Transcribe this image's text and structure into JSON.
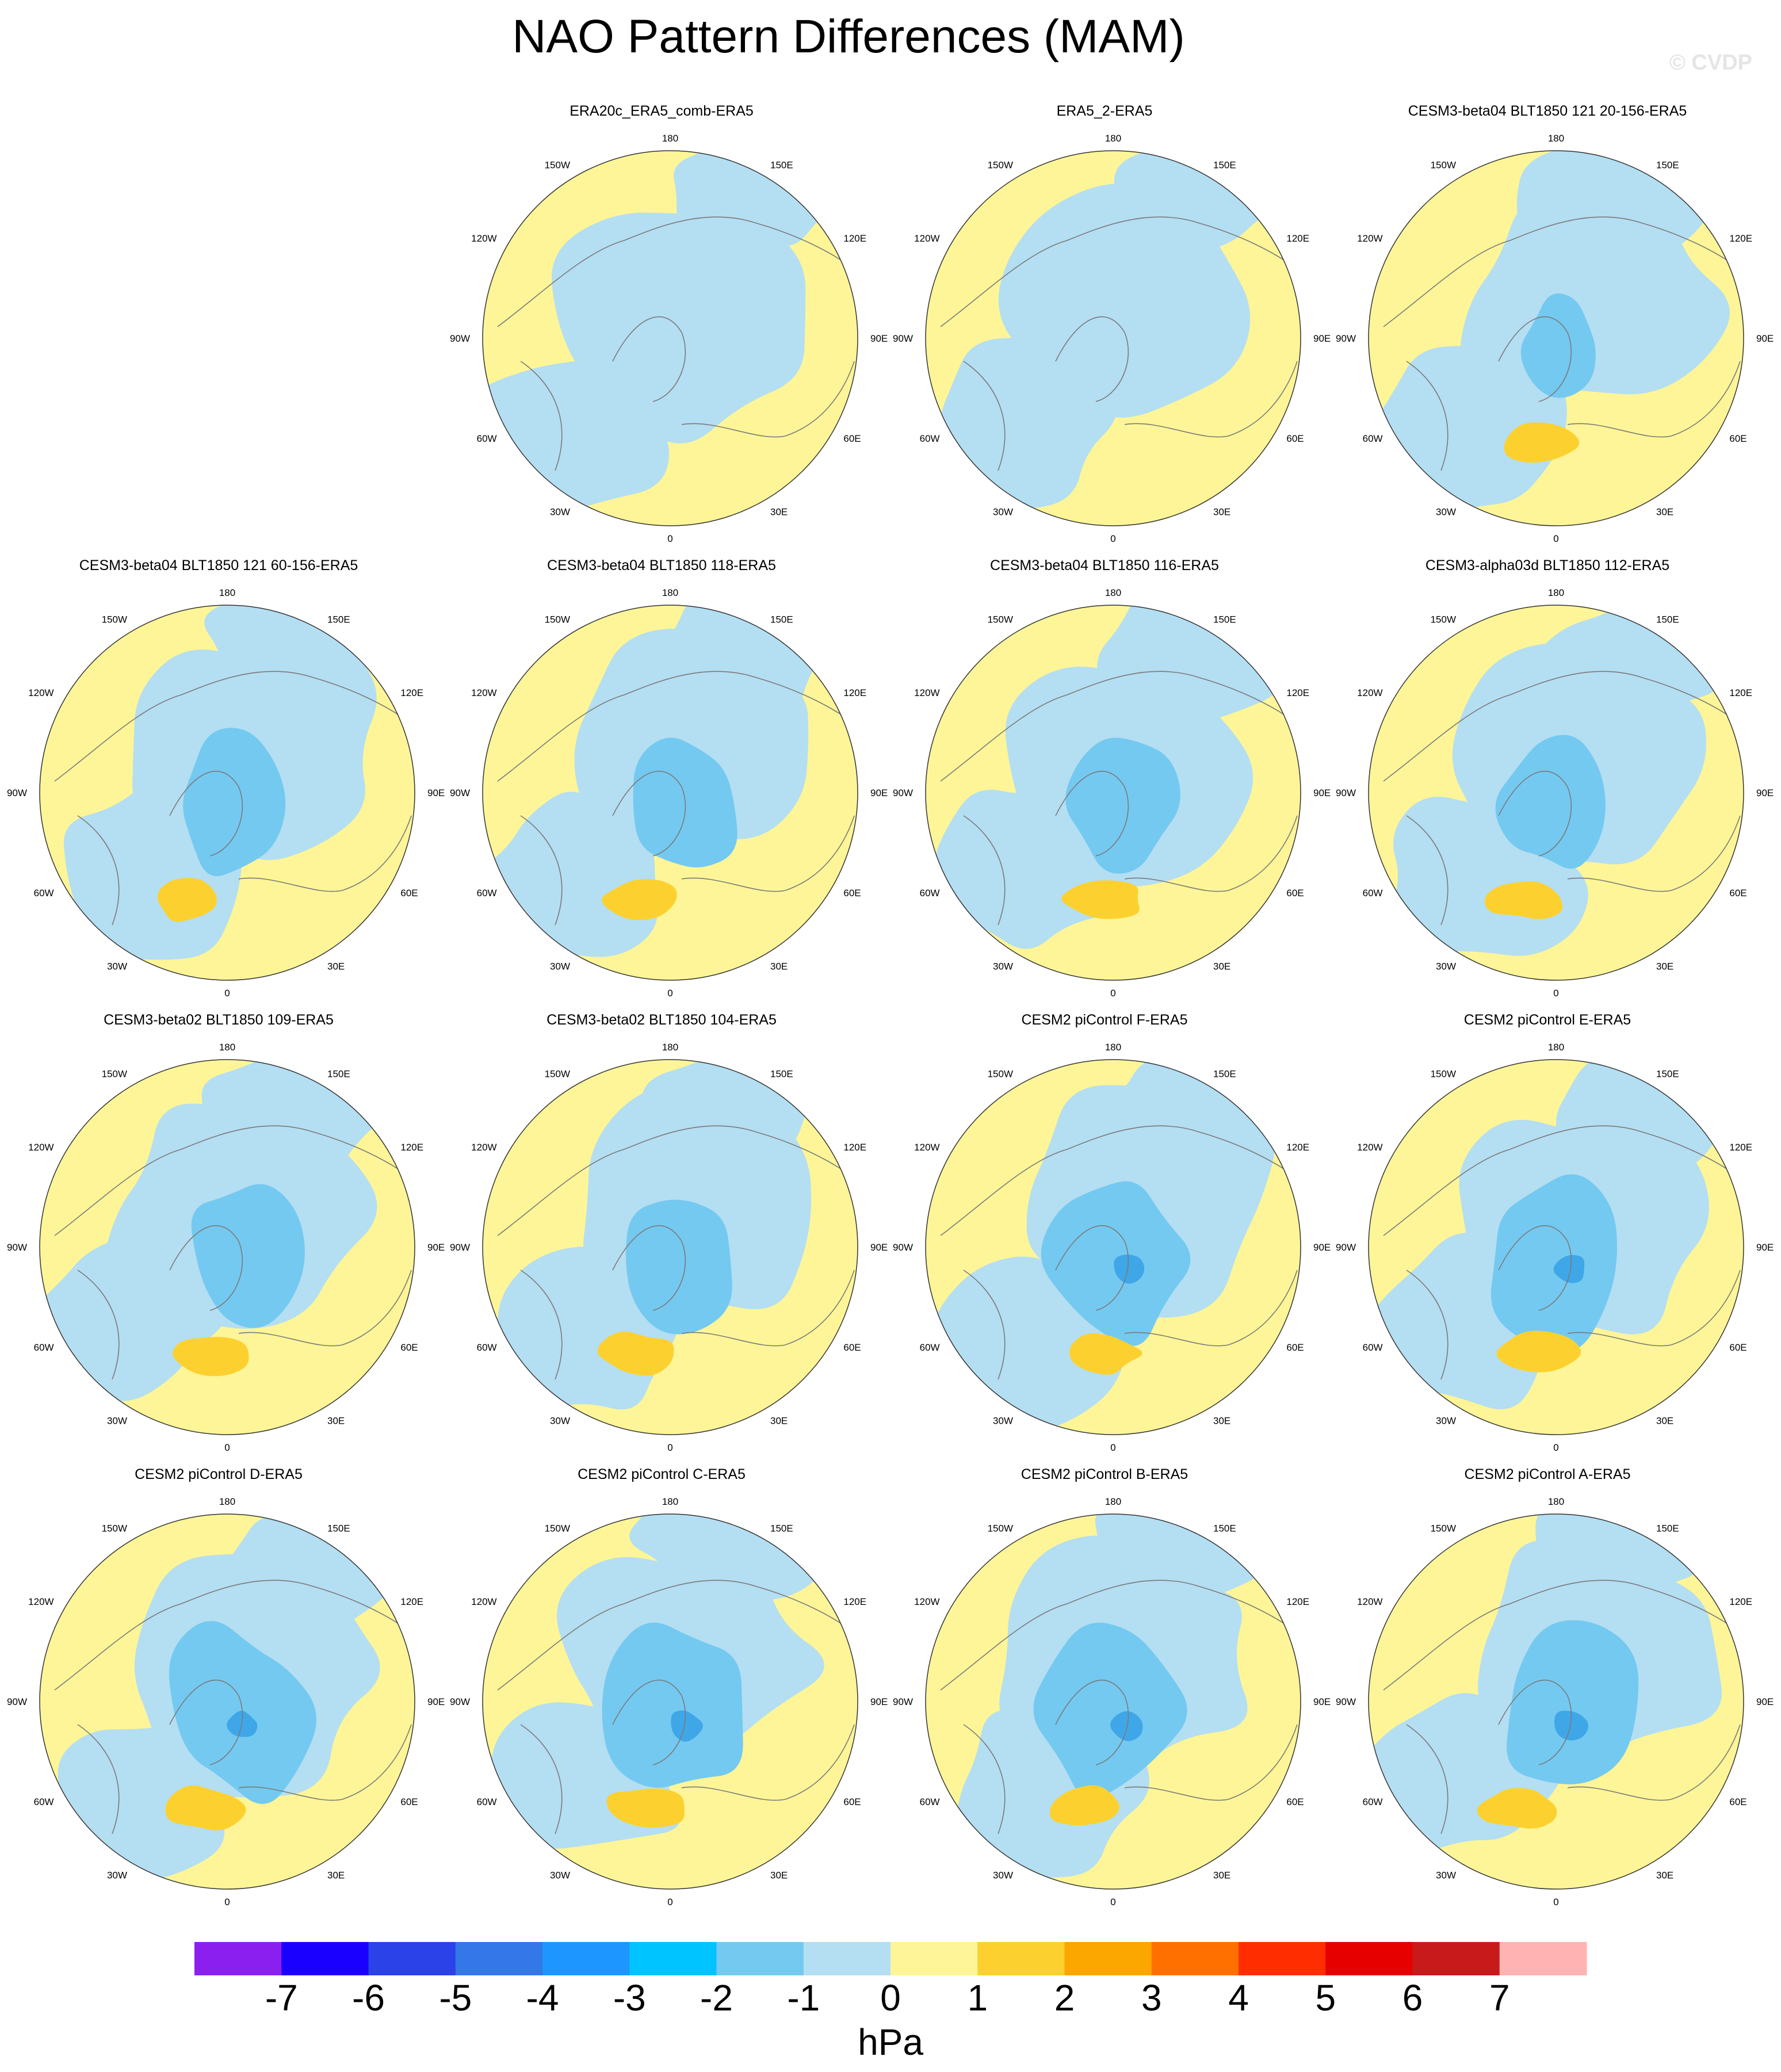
{
  "title": "NAO Pattern Differences (MAM)",
  "watermark": "© CVDP",
  "units": "hPa",
  "colorbar": {
    "labels": [
      "-7",
      "-6",
      "-5",
      "-4",
      "-3",
      "-2",
      "-1",
      "0",
      "1",
      "2",
      "3",
      "4",
      "5",
      "6",
      "7"
    ],
    "colors": [
      "#8B1FF0",
      "#1A00FF",
      "#2A42E8",
      "#3477E8",
      "#1E96FF",
      "#00C4FF",
      "#74C9F0",
      "#B4DEF2",
      "#FDF597",
      "#FCD12F",
      "#FCA600",
      "#FF7000",
      "#FF2D00",
      "#E60000",
      "#C81A1A",
      "#FFB3B3"
    ]
  },
  "lon_labels": [
    "180",
    "150E",
    "120E",
    "90E",
    "60E",
    "30E",
    "0",
    "30W",
    "60W",
    "90W",
    "120W",
    "150W"
  ],
  "panels": [
    {
      "title": "ERA20c_ERA5_comb-ERA5"
    },
    {
      "title": "ERA5_2-ERA5"
    },
    {
      "title": "CESM3-beta04 BLT1850 121 20-156-ERA5"
    },
    {
      "title": "CESM3-beta04 BLT1850 121 60-156-ERA5"
    },
    {
      "title": "CESM3-beta04 BLT1850 118-ERA5"
    },
    {
      "title": "CESM3-beta04 BLT1850 116-ERA5"
    },
    {
      "title": "CESM3-alpha03d BLT1850 112-ERA5"
    },
    {
      "title": "CESM3-beta02 BLT1850 109-ERA5"
    },
    {
      "title": "CESM3-beta02 BLT1850 104-ERA5"
    },
    {
      "title": "CESM2 piControl F-ERA5"
    },
    {
      "title": "CESM2 piControl E-ERA5"
    },
    {
      "title": "CESM2 piControl D-ERA5"
    },
    {
      "title": "CESM2 piControl C-ERA5"
    },
    {
      "title": "CESM2 piControl B-ERA5"
    },
    {
      "title": "CESM2 piControl A-ERA5"
    }
  ]
}
